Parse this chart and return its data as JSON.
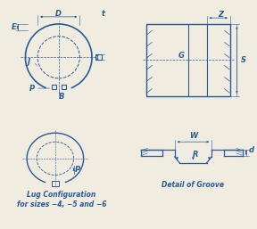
{
  "bg_color": "#f0ece0",
  "ring_color": "#2a5a9a",
  "line_color": "#2a5a9a",
  "text_color": "#2a5a9a",
  "title_text": "Lug Configuration\nfor sizes −4, −5 and −6",
  "groove_text": "Detail of Groove",
  "labels": {
    "E": "E",
    "D": "D",
    "t": "t",
    "J": "J",
    "P": "P",
    "B": "B",
    "Z": "Z",
    "G": "G",
    "S": "S",
    "W": "W",
    "R": "R",
    "d": "d"
  },
  "font_size_label": 6,
  "font_size_caption": 5.5
}
